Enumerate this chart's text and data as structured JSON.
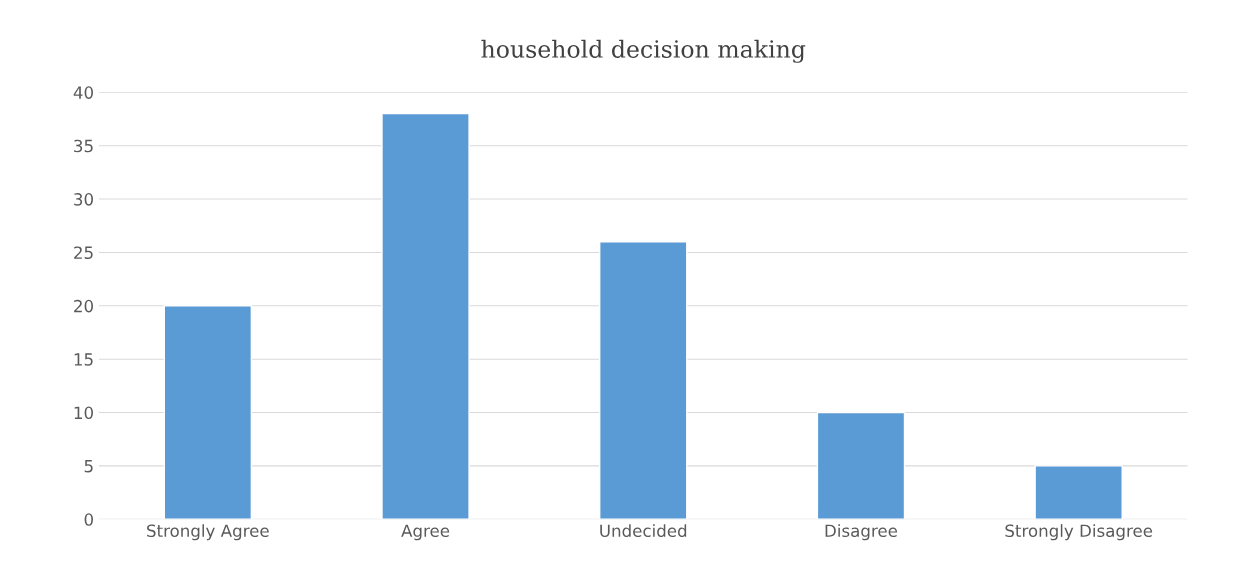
{
  "chart_data": {
    "type": "bar",
    "title": "household decision making",
    "categories": [
      "Strongly Agree",
      "Agree",
      "Undecided",
      "Disagree",
      "Strongly Disagree"
    ],
    "values": [
      20,
      38,
      26,
      10,
      5
    ],
    "color": "#5b9bd5",
    "ylim": [
      0,
      40
    ],
    "yticks": [
      0,
      5,
      10,
      15,
      20,
      25,
      30,
      35,
      40
    ],
    "grid": "y",
    "legend": false
  }
}
